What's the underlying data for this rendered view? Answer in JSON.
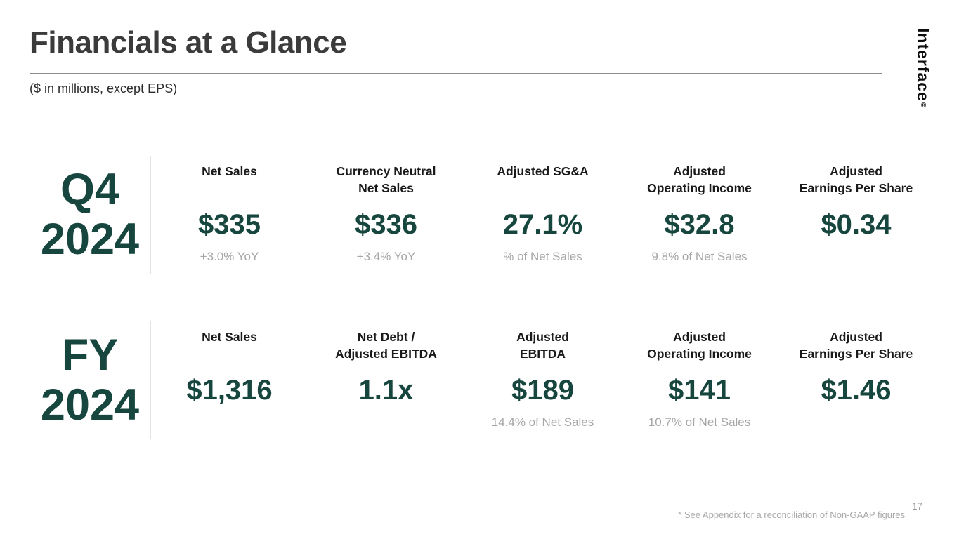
{
  "slide": {
    "title": "Financials at a Glance",
    "subtitle": "($ in millions, except EPS)",
    "logo_text": "Interface",
    "logo_registered_mark": "®",
    "footnote": "* See Appendix for a reconciliation of Non-GAAP figures",
    "page_number": "17"
  },
  "colors": {
    "accent_teal": "#16463e",
    "title_gray": "#3b3b3b",
    "muted_gray": "#a6a6a6"
  },
  "rows": [
    {
      "period": "Q4\n2024",
      "metrics": [
        {
          "label": "Net Sales",
          "value": "$335",
          "caption": "+3.0% YoY"
        },
        {
          "label": "Currency Neutral\nNet Sales",
          "value": "$336",
          "caption": "+3.4% YoY"
        },
        {
          "label": "Adjusted SG&A",
          "value": "27.1%",
          "caption": "% of Net Sales"
        },
        {
          "label": "Adjusted\nOperating Income",
          "value": "$32.8",
          "caption": "9.8% of Net Sales"
        },
        {
          "label": "Adjusted\nEarnings Per Share",
          "value": "$0.34",
          "caption": ""
        }
      ]
    },
    {
      "period": "FY\n2024",
      "metrics": [
        {
          "label": "Net Sales",
          "value": "$1,316",
          "caption": ""
        },
        {
          "label": "Net Debt /\nAdjusted EBITDA",
          "value": "1.1x",
          "caption": ""
        },
        {
          "label": "Adjusted\nEBITDA",
          "value": "$189",
          "caption": "14.4% of Net Sales"
        },
        {
          "label": "Adjusted\nOperating Income",
          "value": "$141",
          "caption": "10.7% of Net Sales"
        },
        {
          "label": "Adjusted\nEarnings Per Share",
          "value": "$1.46",
          "caption": ""
        }
      ]
    }
  ]
}
